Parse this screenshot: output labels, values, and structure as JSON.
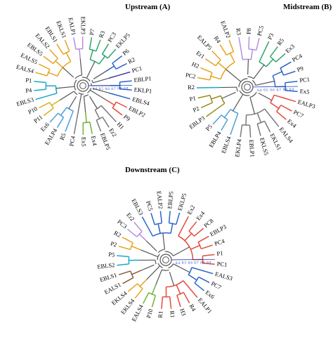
{
  "panels": [
    {
      "key": "upstream",
      "title": "Upstream (A)",
      "leaves": [
        {
          "label": "EKLP1",
          "group": 4
        },
        {
          "label": "EBLP1",
          "group": 4
        },
        {
          "label": "PC1",
          "group": 5
        },
        {
          "label": "R2",
          "group": 4
        },
        {
          "label": "P6",
          "group": 4
        },
        {
          "label": "EKLP5",
          "group": 3
        },
        {
          "label": "PC3",
          "group": 3
        },
        {
          "label": "R3",
          "group": 3
        },
        {
          "label": "P7",
          "group": 3
        },
        {
          "label": "EKLP3",
          "group": 2
        },
        {
          "label": "EALP1",
          "group": 2
        },
        {
          "label": "EKLS1",
          "group": 1
        },
        {
          "label": "EBLS1",
          "group": 1
        },
        {
          "label": "EALS2",
          "group": 1
        },
        {
          "label": "EBLS5",
          "group": 1
        },
        {
          "label": "EALS5",
          "group": 1
        },
        {
          "label": "EALS4",
          "group": 1
        },
        {
          "label": "P1",
          "group": 0
        },
        {
          "label": "P4",
          "group": 0
        },
        {
          "label": "EBLS3",
          "group": 0
        },
        {
          "label": "P10",
          "group": 6
        },
        {
          "label": "P11",
          "group": 6
        },
        {
          "label": "Ex6",
          "group": 7
        },
        {
          "label": "EALP4",
          "group": 7
        },
        {
          "label": "R5",
          "group": 7
        },
        {
          "label": "PC4",
          "group": 8
        },
        {
          "label": "Ex5",
          "group": 9
        },
        {
          "label": "Ex4",
          "group": 9
        },
        {
          "label": "EBLP5",
          "group": 8
        },
        {
          "label": "Er2",
          "group": 8
        },
        {
          "label": "H1",
          "group": 8
        },
        {
          "label": "P9",
          "group": 10
        },
        {
          "label": "EBLP2",
          "group": 10
        },
        {
          "label": "EBLS4",
          "group": 4
        }
      ]
    },
    {
      "key": "midstream",
      "title": "Midstream (B)",
      "leaves": [
        {
          "label": "Ex5",
          "group": 4
        },
        {
          "label": "PC1",
          "group": 4
        },
        {
          "label": "P9",
          "group": 4
        },
        {
          "label": "PC4",
          "group": 4
        },
        {
          "label": "Ex3",
          "group": 3
        },
        {
          "label": "R5",
          "group": 3
        },
        {
          "label": "P3",
          "group": 3
        },
        {
          "label": "PC5",
          "group": 2
        },
        {
          "label": "P8",
          "group": 2
        },
        {
          "label": "R3",
          "group": 2
        },
        {
          "label": "EALP2",
          "group": 1
        },
        {
          "label": "R4",
          "group": 1
        },
        {
          "label": "EALP5",
          "group": 1
        },
        {
          "label": "Er1",
          "group": 1
        },
        {
          "label": "H2",
          "group": 1
        },
        {
          "label": "PC2",
          "group": 1
        },
        {
          "label": "R2",
          "group": 0
        },
        {
          "label": "P1",
          "group": 11
        },
        {
          "label": "P2",
          "group": 11
        },
        {
          "label": "EBLP3",
          "group": 11
        },
        {
          "label": "P5",
          "group": 7
        },
        {
          "label": "EBLP4",
          "group": 7
        },
        {
          "label": "EBLS4",
          "group": 7
        },
        {
          "label": "EKLP4",
          "group": 8
        },
        {
          "label": "EBLP1",
          "group": 8
        },
        {
          "label": "EKLS5",
          "group": 8
        },
        {
          "label": "EKLS1",
          "group": 8
        },
        {
          "label": "EALS4",
          "group": 8
        },
        {
          "label": "Ex4",
          "group": 10
        },
        {
          "label": "PC7",
          "group": 10
        },
        {
          "label": "EALP3",
          "group": 10
        }
      ]
    },
    {
      "key": "downstream",
      "title": "Downstream (C)",
      "leaves": [
        {
          "label": "PC1",
          "group": 10
        },
        {
          "label": "P1",
          "group": 10
        },
        {
          "label": "PC4",
          "group": 10
        },
        {
          "label": "EBLP3",
          "group": 10
        },
        {
          "label": "PC8",
          "group": 10
        },
        {
          "label": "Ex4",
          "group": 10
        },
        {
          "label": "Ex2",
          "group": 10
        },
        {
          "label": "EKLP5",
          "group": 4
        },
        {
          "label": "EBLP5",
          "group": 4
        },
        {
          "label": "EALP2",
          "group": 4
        },
        {
          "label": "PC5",
          "group": 4
        },
        {
          "label": "EBLS3",
          "group": 4
        },
        {
          "label": "Er2",
          "group": 2
        },
        {
          "label": "PC3",
          "group": 2
        },
        {
          "label": "R2",
          "group": 1
        },
        {
          "label": "P2",
          "group": 1
        },
        {
          "label": "P5",
          "group": 0
        },
        {
          "label": "EBLS2",
          "group": 0
        },
        {
          "label": "EBLS1",
          "group": 12
        },
        {
          "label": "EALS1",
          "group": 12
        },
        {
          "label": "EKLS4",
          "group": 1
        },
        {
          "label": "EKLS4",
          "group": 1
        },
        {
          "label": "EALS4",
          "group": 9
        },
        {
          "label": "P10",
          "group": 9
        },
        {
          "label": "R1",
          "group": 10
        },
        {
          "label": "R1",
          "group": 10
        },
        {
          "label": "H3",
          "group": 10
        },
        {
          "label": "R4",
          "group": 10
        },
        {
          "label": "EALP1",
          "group": 10
        },
        {
          "label": "Ex6",
          "group": 4
        },
        {
          "label": "PC7",
          "group": 4
        },
        {
          "label": "EALS3",
          "group": 4
        }
      ]
    }
  ],
  "colors": [
    "#1aa9c9",
    "#e8a21c",
    "#b58ee0",
    "#2aa66a",
    "#2a64c9",
    "#3a3fa8",
    "#d6b21c",
    "#4f9ed8",
    "#7a7a7a",
    "#6cb33a",
    "#e34b3f",
    "#9a8a1c",
    "#8b5a3c"
  ],
  "scale_ticks": [
    "0.4",
    "0.5",
    "0.6",
    "0.7",
    "0.8",
    "0.9"
  ],
  "core_color": "#555555"
}
